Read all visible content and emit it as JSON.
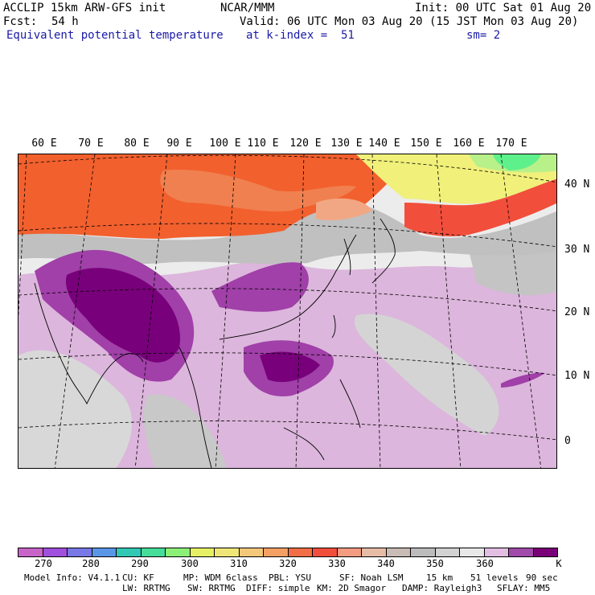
{
  "header": {
    "model": "ACCLIP 15km ARW-GFS init",
    "org": "NCAR/MMM",
    "init": "Init: 00 UTC Sat 01 Aug 20",
    "fcst_label": "Fcst:",
    "fcst_value": "54 h",
    "valid": "Valid: 06 UTC Mon 03 Aug 20 (15 JST Mon 03 Aug 20)",
    "field": "Equivalent potential temperature",
    "level": "at k-index =  51",
    "smooth": "sm= 2"
  },
  "map": {
    "lon_labels": [
      "60 E",
      "70 E",
      "80 E",
      "90 E",
      "100 E",
      "110 E",
      "120 E",
      "130 E",
      "140 E",
      "150 E",
      "160 E",
      "170 E"
    ],
    "lat_labels": [
      "40 N",
      "30 N",
      "20 N",
      "10 N",
      "0"
    ],
    "colors": {
      "land_dark": "#f2602e",
      "land_orange": "#f08050",
      "salmon": "#f2a784",
      "gray_mid": "#c0c0c0",
      "gray_light": "#d8d8d8",
      "gray_pale": "#ececec",
      "lilac": "#dcb6dc",
      "purple_mid": "#a040a8",
      "purple_dark": "#78007a",
      "yellow": "#f0f07a",
      "green": "#5ef08a"
    }
  },
  "colorbar": {
    "unit": "K",
    "labels": [
      "270",
      "280",
      "290",
      "300",
      "310",
      "320",
      "330",
      "340",
      "350",
      "360"
    ],
    "swatches": [
      "#c864c8",
      "#a050dc",
      "#7878e6",
      "#5a96e6",
      "#32c8b4",
      "#46dc9a",
      "#8cf078",
      "#e6f064",
      "#f0e678",
      "#f4c87a",
      "#f4a064",
      "#f26e46",
      "#f24e3c",
      "#f49c82",
      "#e6bca6",
      "#c8bcb4",
      "#bcbcbc",
      "#d2d2d2",
      "#e8e8e8",
      "#e2bee2",
      "#a04aaa",
      "#7a0078"
    ]
  },
  "footer": {
    "line1": [
      "Model Info: V4.1.1",
      "CU: KF",
      "MP: WDM 6class",
      "PBL: YSU",
      "SF: Noah LSM",
      "15 km",
      "51 levels",
      "90 sec"
    ],
    "line2": [
      "LW: RRTMG",
      "SW: RRTMG",
      "DIFF: simple",
      "KM: 2D Smagor",
      "DAMP: Rayleigh3",
      "SFLAY: MM5"
    ]
  }
}
